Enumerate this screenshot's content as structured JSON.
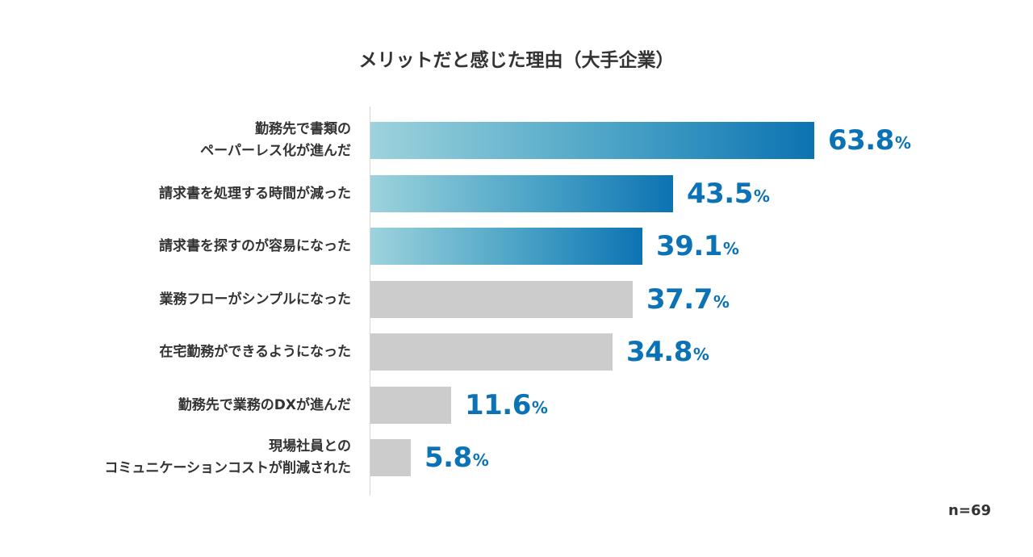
{
  "chart_data": {
    "type": "bar",
    "orientation": "horizontal",
    "title": "メリットだと感じた理由（大手企業）",
    "categories": [
      [
        "勤務先で書類の",
        "ペーパーレス化が進んだ"
      ],
      [
        "請求書を処理する時間が減った"
      ],
      [
        "請求書を探すのが容易になった"
      ],
      [
        "業務フローがシンプルになった"
      ],
      [
        "在宅勤務ができるようになった"
      ],
      [
        "勤務先で業務のDXが進んだ"
      ],
      [
        "現場社員との",
        "コミュニケーションコストが削減された"
      ]
    ],
    "values": [
      63.8,
      43.5,
      39.1,
      37.7,
      34.8,
      11.6,
      5.8
    ],
    "value_labels": [
      "63.8",
      "43.5",
      "39.1",
      "37.7",
      "34.8",
      "11.6",
      "5.8"
    ],
    "unit": "%",
    "highlighted": [
      true,
      true,
      true,
      false,
      false,
      false,
      false
    ],
    "xlim": [
      0,
      100
    ],
    "grid": false,
    "note": "n=69",
    "colors": {
      "gradient_start": "#9dd3dc",
      "gradient_end": "#0c73b2",
      "gray_bar": "#cccccc",
      "value_text": "#0b73b5"
    }
  }
}
